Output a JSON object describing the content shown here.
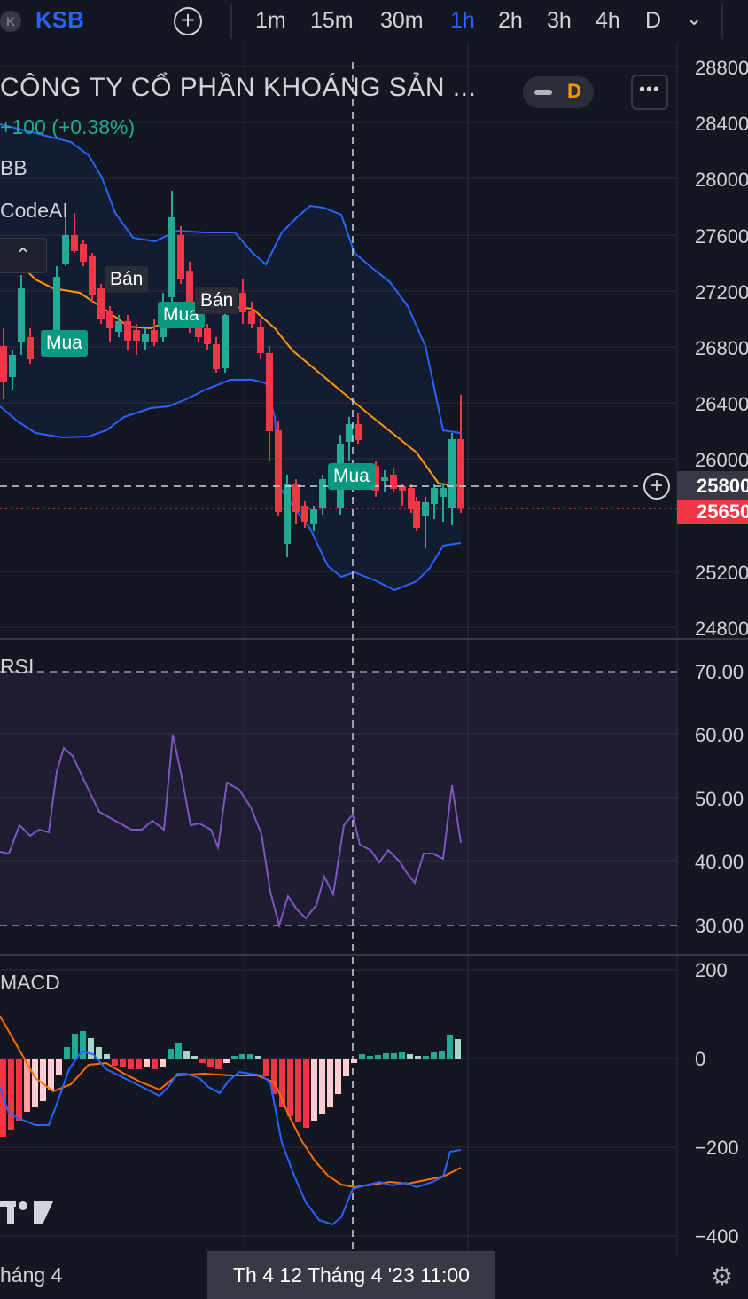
{
  "toolbar": {
    "symbol_initial": "K",
    "symbol": "KSB",
    "add_symbol": "+",
    "intervals": [
      "1m",
      "15m",
      "30m",
      "1h",
      "2h",
      "3h",
      "4h",
      "D"
    ],
    "active_interval": "1h",
    "more": "⌄"
  },
  "header": {
    "title": "CÔNG TY CỔ PHẦN KHOÁNG SẢN ...",
    "change": "+100 (+0.38%)",
    "indicator_bb": "BB",
    "indicator_codeai": "CodeAI",
    "collapse": "⌃",
    "market_status": "D",
    "more_menu": "•••"
  },
  "price_axis": [
    "28800",
    "28400",
    "28000",
    "27600",
    "27200",
    "26800",
    "26400",
    "26000",
    "25800",
    "25650",
    "25200",
    "24800"
  ],
  "crosshair_price": "25800",
  "last_price": "25650",
  "rsi": {
    "label": "RSI",
    "axis": [
      "70.00",
      "60.00",
      "50.00",
      "40.00",
      "30.00"
    ]
  },
  "macd": {
    "label": "MACD",
    "axis": [
      "200",
      "0",
      "−200",
      "−400"
    ]
  },
  "signals": [
    {
      "label": "Mua",
      "type": "buy"
    },
    {
      "label": "Bán",
      "type": "sell"
    },
    {
      "label": "Mua",
      "type": "buy"
    },
    {
      "label": "Bán",
      "type": "sell"
    },
    {
      "label": "Mua",
      "type": "buy"
    }
  ],
  "time_axis": {
    "left_label": "háng 4",
    "crosshair_date": "Th 4 12 Tháng 4 '23   11:00"
  },
  "colors": {
    "up": "#22ab94",
    "down": "#f23645",
    "accent": "#2962ff",
    "bb": "#2962ff",
    "ma": "#ff9800",
    "rsi": "#7e57c2"
  }
}
